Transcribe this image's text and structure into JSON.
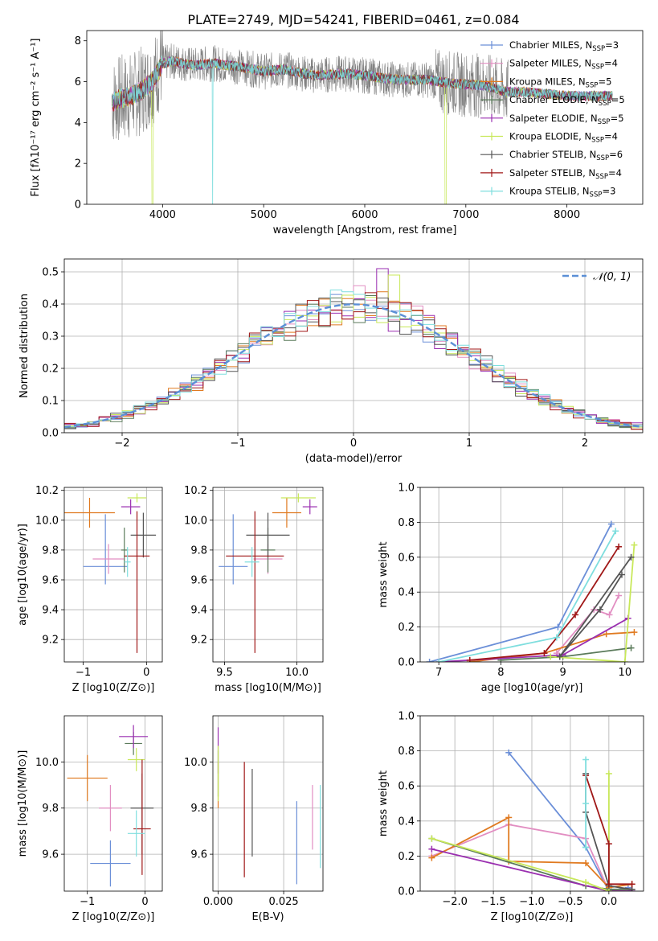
{
  "title": "PLATE=2749, MJD=54241, FIBERID=0461, z=0.084",
  "colors": {
    "Chabrier MILES": "#6b8fd8",
    "Salpeter MILES": "#e28ec2",
    "Kroupa MILES": "#e07a20",
    "Chabrier ELODIE": "#5a7a5a",
    "Salpeter ELODIE": "#9a2fb0",
    "Kroupa ELODIE": "#c8e85a",
    "Chabrier STELIB": "#555555",
    "Salpeter STELIB": "#a01818",
    "Kroupa STELIB": "#7fdede",
    "data": "#808080",
    "normal": "#5b8fd6"
  },
  "chart_data": [
    {
      "id": "spectrum",
      "type": "line",
      "xlabel": "wavelength [Angstrom, rest frame]",
      "ylabel": "Flux [fλ10⁻¹⁷ erg cm⁻² s⁻¹ A⁻¹]",
      "xlim": [
        3250,
        8750
      ],
      "ylim": [
        0,
        8.5
      ],
      "xticks": [
        4000,
        5000,
        6000,
        7000,
        8000
      ],
      "yticks": [
        0,
        2,
        4,
        6,
        8
      ],
      "legend": [
        "Chabrier MILES, N_SSP=3",
        "Salpeter MILES, N_SSP=4",
        "Kroupa MILES, N_SSP=5",
        "Chabrier ELODIE, N_SSP=5",
        "Salpeter ELODIE, N_SSP=5",
        "Kroupa ELODIE, N_SSP=4",
        "Chabrier STELIB, N_SSP=6",
        "Salpeter STELIB, N_SSP=4",
        "Kroupa STELIB, N_SSP=3"
      ],
      "legend_location": "right",
      "continuum": {
        "x": [
          3500,
          3600,
          3700,
          3800,
          3900,
          4000,
          4100,
          4300,
          4500,
          4800,
          5000,
          5200,
          5500,
          5800,
          6000,
          6300,
          6600,
          6900,
          7200,
          7400,
          7600,
          7800,
          8000,
          8200,
          8400
        ],
        "y": [
          5.0,
          5.2,
          5.3,
          5.6,
          6.0,
          6.9,
          7.0,
          6.8,
          6.9,
          6.7,
          6.5,
          6.6,
          6.3,
          6.4,
          6.3,
          6.1,
          6.1,
          5.9,
          5.8,
          5.5,
          5.5,
          5.4,
          5.3,
          5.3,
          5.3
        ]
      }
    },
    {
      "id": "residuals",
      "type": "line",
      "xlabel": "(data-model)/error",
      "ylabel": "Normed distribution",
      "xlim": [
        -2.5,
        2.5
      ],
      "ylim": [
        0,
        0.54
      ],
      "xticks": [
        -2,
        -1,
        0,
        1,
        2
      ],
      "yticks": [
        0.0,
        0.1,
        0.2,
        0.3,
        0.4,
        0.5
      ],
      "legend": [
        "𝒩(0, 1)"
      ],
      "legend_location": "upper right",
      "grid": true
    },
    {
      "id": "Z-age",
      "type": "scatter",
      "xlabel": "Z [log10(Z/Z⊙)]",
      "ylabel": "age [log10(age/yr)]",
      "xlim": [
        -1.3,
        0.25
      ],
      "ylim": [
        9.05,
        10.22
      ],
      "xticks": [
        -1,
        0
      ],
      "yticks": [
        9.2,
        9.4,
        9.6,
        9.8,
        10.0,
        10.2
      ],
      "grid": true,
      "points": [
        {
          "series": "Chabrier MILES",
          "x": -0.65,
          "y": 9.69,
          "xerr": 0.35,
          "yerr": [
            0.12,
            0.35
          ]
        },
        {
          "series": "Salpeter MILES",
          "x": -0.6,
          "y": 9.74,
          "xerr": 0.25,
          "yerr": [
            0.1,
            0.1
          ]
        },
        {
          "series": "Kroupa MILES",
          "x": -0.9,
          "y": 10.05,
          "xerr": 0.4,
          "yerr": [
            0.1,
            0.1
          ]
        },
        {
          "series": "Chabrier ELODIE",
          "x": -0.35,
          "y": 9.8,
          "xerr": 0.05,
          "yerr": [
            0.15,
            0.15
          ]
        },
        {
          "series": "Salpeter ELODIE",
          "x": -0.25,
          "y": 10.09,
          "xerr": 0.15,
          "yerr": [
            0.05,
            0.05
          ]
        },
        {
          "series": "Kroupa ELODIE",
          "x": -0.15,
          "y": 10.15,
          "xerr": 0.15,
          "yerr": [
            0.03,
            0.03
          ]
        },
        {
          "series": "Chabrier STELIB",
          "x": -0.05,
          "y": 9.9,
          "xerr": 0.2,
          "yerr": [
            0.15,
            0.15
          ]
        },
        {
          "series": "Salpeter STELIB",
          "x": -0.15,
          "y": 9.76,
          "xerr": 0.2,
          "yerr": [
            0.65,
            0.3
          ]
        },
        {
          "series": "Kroupa STELIB",
          "x": -0.3,
          "y": 9.72,
          "xerr": 0.05,
          "yerr": [
            0.1,
            0.1
          ]
        }
      ]
    },
    {
      "id": "mass-age",
      "type": "scatter",
      "xlabel": "mass [log10(M/M⊙)]",
      "ylabel": "",
      "xlim": [
        9.42,
        10.18
      ],
      "ylim": [
        9.05,
        10.22
      ],
      "xticks": [
        9.5,
        10.0
      ],
      "yticks": [
        9.2,
        9.4,
        9.6,
        9.8,
        10.0,
        10.2
      ],
      "grid": true,
      "points": [
        {
          "series": "Chabrier MILES",
          "x": 9.56,
          "y": 9.69,
          "xerr": 0.1,
          "yerr": [
            0.12,
            0.35
          ]
        },
        {
          "series": "Salpeter MILES",
          "x": 9.8,
          "y": 9.74,
          "xerr": 0.1,
          "yerr": [
            0.1,
            0.1
          ]
        },
        {
          "series": "Kroupa MILES",
          "x": 9.93,
          "y": 10.05,
          "xerr": 0.1,
          "yerr": [
            0.1,
            0.1
          ]
        },
        {
          "series": "Chabrier ELODIE",
          "x": 9.8,
          "y": 9.8,
          "xerr": 0.05,
          "yerr": [
            0.15,
            0.15
          ]
        },
        {
          "series": "Salpeter ELODIE",
          "x": 10.09,
          "y": 10.09,
          "xerr": 0.05,
          "yerr": [
            0.05,
            0.05
          ]
        },
        {
          "series": "Kroupa ELODIE",
          "x": 10.01,
          "y": 10.15,
          "xerr": 0.12,
          "yerr": [
            0.03,
            0.03
          ]
        },
        {
          "series": "Chabrier STELIB",
          "x": 9.8,
          "y": 9.9,
          "xerr": 0.15,
          "yerr": [
            0.15,
            0.15
          ]
        },
        {
          "series": "Salpeter STELIB",
          "x": 9.71,
          "y": 9.76,
          "xerr": 0.2,
          "yerr": [
            0.65,
            0.3
          ]
        },
        {
          "series": "Kroupa STELIB",
          "x": 9.69,
          "y": 9.72,
          "xerr": 0.05,
          "yerr": [
            0.1,
            0.1
          ]
        }
      ]
    },
    {
      "id": "age-weight",
      "type": "line",
      "xlabel": "age [log10(age/yr)]",
      "ylabel": "mass weight",
      "xlim": [
        6.7,
        10.3
      ],
      "ylim": [
        0.0,
        1.0
      ],
      "xticks": [
        7,
        8,
        9,
        10
      ],
      "yticks": [
        0.0,
        0.2,
        0.4,
        0.6,
        0.8,
        1.0
      ],
      "grid": true,
      "series": [
        {
          "name": "Chabrier MILES",
          "x": [
            9.78,
            8.92,
            6.85
          ],
          "y": [
            0.79,
            0.2,
            0.0
          ]
        },
        {
          "name": "Salpeter MILES",
          "x": [
            9.9,
            9.75,
            9.5,
            8.9
          ],
          "y": [
            0.38,
            0.27,
            0.3,
            0.05
          ]
        },
        {
          "name": "Kroupa MILES",
          "x": [
            10.15,
            9.7,
            8.7,
            7.5
          ],
          "y": [
            0.17,
            0.16,
            0.05,
            0.0
          ]
        },
        {
          "name": "Chabrier ELODIE",
          "x": [
            10.1,
            9.0,
            8.0
          ],
          "y": [
            0.08,
            0.03,
            0.01
          ]
        },
        {
          "name": "Salpeter ELODIE",
          "x": [
            10.05,
            9.0,
            7.0
          ],
          "y": [
            0.25,
            0.04,
            0.0
          ]
        },
        {
          "name": "Kroupa ELODIE",
          "x": [
            10.15,
            10.0,
            8.8
          ],
          "y": [
            0.67,
            0.0,
            0.03
          ]
        },
        {
          "name": "Chabrier STELIB",
          "x": [
            9.95,
            9.6,
            8.95,
            10.1
          ],
          "y": [
            0.5,
            0.3,
            0.03,
            0.6
          ]
        },
        {
          "name": "Salpeter STELIB",
          "x": [
            9.9,
            9.2,
            8.7,
            7.5
          ],
          "y": [
            0.66,
            0.27,
            0.05,
            0.01
          ]
        },
        {
          "name": "Kroupa STELIB",
          "x": [
            9.85,
            8.9,
            7.0
          ],
          "y": [
            0.75,
            0.14,
            0.0
          ]
        }
      ]
    },
    {
      "id": "Z-mass",
      "type": "scatter",
      "xlabel": "Z [log10(Z/Z⊙)]",
      "ylabel": "mass [log10(M/M⊙)]",
      "xlim": [
        -1.4,
        0.3
      ],
      "ylim": [
        9.44,
        10.2
      ],
      "xticks": [
        -1,
        0
      ],
      "yticks": [
        9.6,
        9.8,
        10.0
      ],
      "grid": true,
      "points": [
        {
          "series": "Chabrier MILES",
          "x": -0.6,
          "y": 9.56,
          "xerr": 0.35,
          "yerr": [
            0.1,
            0.1
          ]
        },
        {
          "series": "Salpeter MILES",
          "x": -0.6,
          "y": 9.8,
          "xerr": 0.2,
          "yerr": [
            0.1,
            0.1
          ]
        },
        {
          "series": "Kroupa MILES",
          "x": -1.0,
          "y": 9.93,
          "xerr": 0.35,
          "yerr": [
            0.1,
            0.1
          ]
        },
        {
          "series": "Chabrier ELODIE",
          "x": -0.2,
          "y": 10.08,
          "xerr": 0.15,
          "yerr": [
            0.05,
            0.05
          ]
        },
        {
          "series": "Salpeter ELODIE",
          "x": -0.2,
          "y": 10.11,
          "xerr": 0.25,
          "yerr": [
            0.05,
            0.05
          ]
        },
        {
          "series": "Kroupa ELODIE",
          "x": -0.15,
          "y": 10.01,
          "xerr": 0.15,
          "yerr": [
            0.05,
            0.05
          ]
        },
        {
          "series": "Chabrier STELIB",
          "x": -0.05,
          "y": 9.8,
          "xerr": 0.2,
          "yerr": [
            0.2,
            0.15
          ]
        },
        {
          "series": "Salpeter STELIB",
          "x": -0.05,
          "y": 9.71,
          "xerr": 0.15,
          "yerr": [
            0.2,
            0.3
          ]
        },
        {
          "series": "Kroupa STELIB",
          "x": -0.15,
          "y": 9.69,
          "xerr": 0.15,
          "yerr": [
            0.1,
            0.1
          ]
        }
      ]
    },
    {
      "id": "EBV-mass",
      "type": "scatter",
      "xlabel": "E(B-V)",
      "ylabel": "",
      "xlim": [
        -0.002,
        0.04
      ],
      "ylim": [
        9.44,
        10.2
      ],
      "xticks": [
        0.0,
        0.025
      ],
      "xticklabels": [
        "0.000",
        "0.025"
      ],
      "yticks": [
        9.6,
        9.8,
        10.0
      ],
      "grid": true,
      "points": [
        {
          "series": "Chabrier MILES",
          "x": 0.03,
          "y": 9.65,
          "xerr": 0,
          "yerr": [
            0.18,
            0.18
          ]
        },
        {
          "series": "Salpeter MILES",
          "x": 0.036,
          "y": 9.76,
          "xerr": 0,
          "yerr": [
            0.14,
            0.14
          ]
        },
        {
          "series": "Kroupa MILES",
          "x": 0.0,
          "y": 9.9,
          "xerr": 0,
          "yerr": [
            0.1,
            0.1
          ]
        },
        {
          "series": "Chabrier ELODIE",
          "x": 0.0,
          "y": 9.95,
          "xerr": 0,
          "yerr": [
            0.1,
            0.1
          ]
        },
        {
          "series": "Salpeter ELODIE",
          "x": 0.0,
          "y": 10.05,
          "xerr": 0,
          "yerr": [
            0.1,
            0.1
          ]
        },
        {
          "series": "Kroupa ELODIE",
          "x": 0.0,
          "y": 9.95,
          "xerr": 0,
          "yerr": [
            0.12,
            0.12
          ]
        },
        {
          "series": "Chabrier STELIB",
          "x": 0.013,
          "y": 9.78,
          "xerr": 0,
          "yerr": [
            0.19,
            0.19
          ]
        },
        {
          "series": "Salpeter STELIB",
          "x": 0.01,
          "y": 9.75,
          "xerr": 0,
          "yerr": [
            0.25,
            0.25
          ]
        },
        {
          "series": "Kroupa STELIB",
          "x": 0.039,
          "y": 9.72,
          "xerr": 0,
          "yerr": [
            0.18,
            0.18
          ]
        }
      ]
    },
    {
      "id": "Z-weight",
      "type": "line",
      "xlabel": "Z [log10(Z/Z⊙)]",
      "ylabel": "mass weight",
      "xlim": [
        -2.45,
        0.45
      ],
      "ylim": [
        0.0,
        1.0
      ],
      "xticks": [
        -2.0,
        -1.5,
        -1.0,
        -0.5,
        0.0
      ],
      "yticks": [
        0.0,
        0.2,
        0.4,
        0.6,
        0.8,
        1.0
      ],
      "grid": true,
      "series": [
        {
          "name": "Chabrier MILES",
          "x": [
            -1.3,
            -0.3,
            0.0,
            0.25
          ],
          "y": [
            0.79,
            0.25,
            0.0,
            0.02
          ]
        },
        {
          "name": "Salpeter MILES",
          "x": [
            -2.3,
            -1.3,
            -0.3,
            0.0,
            0.3
          ],
          "y": [
            0.2,
            0.38,
            0.3,
            0.0,
            0.01
          ]
        },
        {
          "name": "Kroupa MILES",
          "x": [
            -2.3,
            -1.3,
            -1.3,
            -0.3,
            0.0,
            0.3
          ],
          "y": [
            0.19,
            0.42,
            0.17,
            0.16,
            0.02,
            0.04
          ]
        },
        {
          "name": "Chabrier ELODIE",
          "x": [
            -2.3,
            -0.3,
            0.0,
            0.3
          ],
          "y": [
            0.3,
            0.03,
            0.01,
            0.01
          ]
        },
        {
          "name": "Salpeter ELODIE",
          "x": [
            -2.3,
            0.0,
            0.3
          ],
          "y": [
            0.24,
            0.0,
            0.0
          ]
        },
        {
          "name": "Kroupa ELODIE",
          "x": [
            -2.3,
            -0.3,
            0.0,
            0.0
          ],
          "y": [
            0.3,
            0.05,
            0.0,
            0.67
          ]
        },
        {
          "name": "Chabrier STELIB",
          "x": [
            -0.3,
            -0.3,
            0.0,
            0.3
          ],
          "y": [
            0.67,
            0.45,
            0.03,
            0.01
          ]
        },
        {
          "name": "Salpeter STELIB",
          "x": [
            -0.3,
            0.0,
            0.0,
            0.3
          ],
          "y": [
            0.66,
            0.27,
            0.04,
            0.04
          ]
        },
        {
          "name": "Kroupa STELIB",
          "x": [
            -0.3,
            -0.3,
            -0.3
          ],
          "y": [
            0.75,
            0.25,
            0.5
          ]
        }
      ]
    }
  ]
}
